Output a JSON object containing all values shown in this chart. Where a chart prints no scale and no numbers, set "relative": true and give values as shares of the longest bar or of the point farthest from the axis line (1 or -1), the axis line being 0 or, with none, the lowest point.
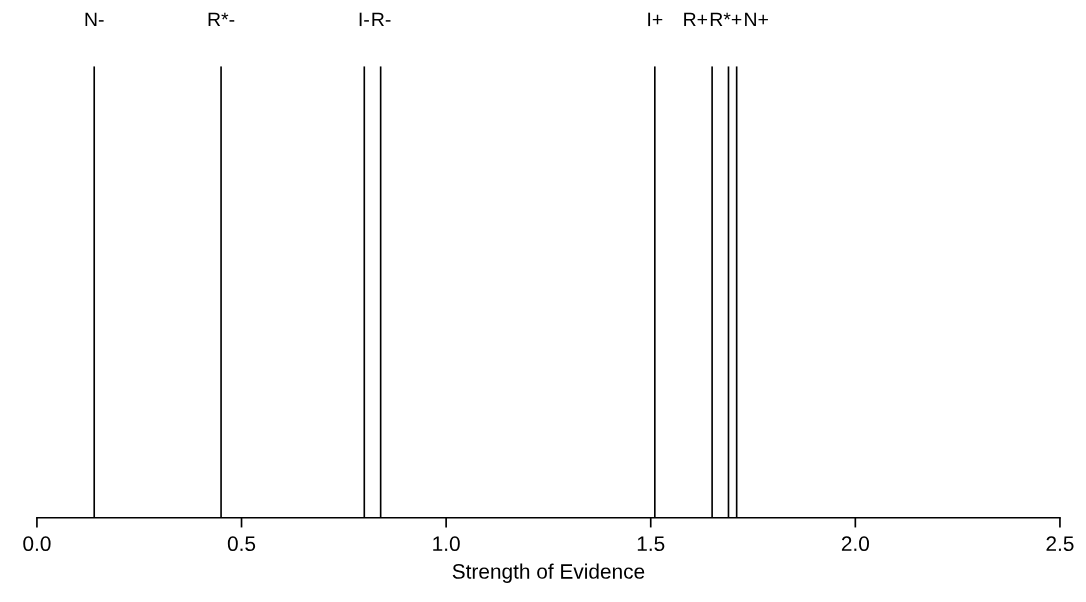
{
  "chart_data": {
    "type": "bar",
    "relative": true,
    "xlabel": "Strength of Evidence",
    "xlim": [
      0,
      2.5
    ],
    "xticks": [
      {
        "value": 0,
        "label": "0.0"
      },
      {
        "value": 0.5,
        "label": "0.5"
      },
      {
        "value": 1,
        "label": "1.0"
      },
      {
        "value": 1.5,
        "label": "1.5"
      },
      {
        "value": 2,
        "label": "2.0"
      },
      {
        "value": 2.5,
        "label": "2.5"
      }
    ],
    "x": [
      0.14,
      0.45,
      0.8,
      0.84,
      1.51,
      1.65,
      1.69,
      1.71
    ],
    "values": [
      1,
      1,
      1,
      1,
      1,
      1,
      1,
      1
    ],
    "annotations": [
      {
        "text": "N-",
        "x": 0.14,
        "y": 1
      },
      {
        "text": "R*-",
        "x": 0.45,
        "y": 1
      },
      {
        "text": "I-",
        "x": 0.8,
        "y": 1
      },
      {
        "text": "R-",
        "x": 0.84,
        "y": 1
      },
      {
        "text": "I+",
        "x": 1.51,
        "y": 1
      },
      {
        "text": "R+",
        "x": 1.65,
        "y": 1
      },
      {
        "text": "R*+",
        "x": 1.69,
        "y": 1
      },
      {
        "text": "N+",
        "x": 1.71,
        "y": 1
      }
    ],
    "color": "#000000"
  }
}
